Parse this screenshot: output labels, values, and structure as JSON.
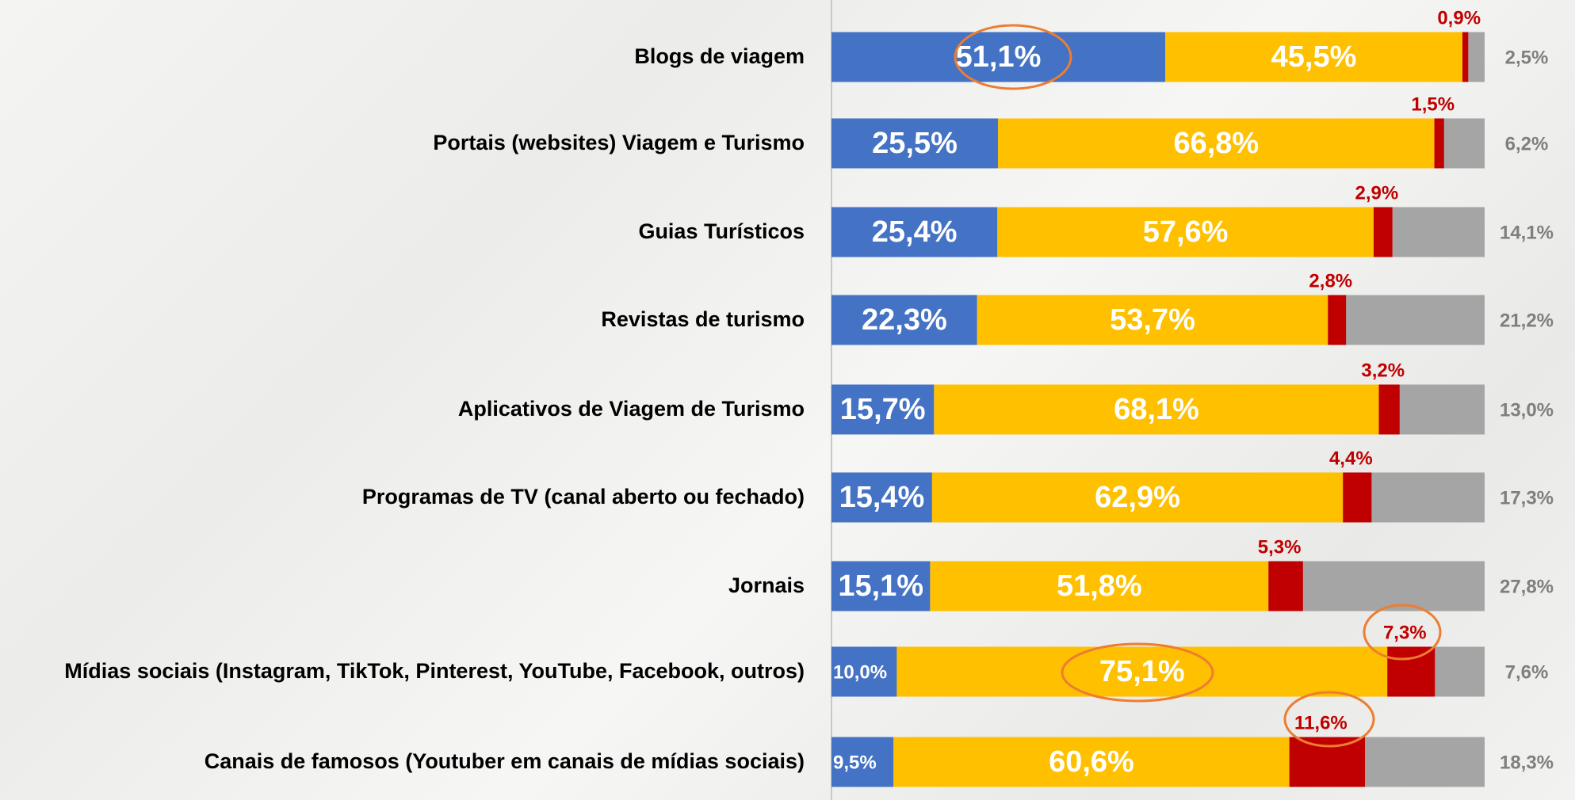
{
  "chart_data": {
    "type": "stacked-bar-horizontal",
    "categories": [
      "Blogs de viagem",
      "Portais (websites) Viagem e Turismo",
      "Guias Turísticos",
      "Revistas de turismo",
      "Aplicativos de Viagem de Turismo",
      "Programas de TV (canal aberto ou fechado)",
      "Jornais",
      "Mídias sociais (Instagram, TikTok, Pinterest, YouTube, Facebook, outros)",
      "Canais de famosos (Youtuber em canais de mídias sociais)"
    ],
    "xlim": [
      0,
      100
    ],
    "series": [
      {
        "color": "#4472c4",
        "values": [
          51.1,
          25.5,
          25.4,
          22.3,
          15.7,
          15.4,
          15.1,
          10.0,
          9.5
        ],
        "value_labels": [
          "51,1%",
          "25,5%",
          "25,4%",
          "22,3%",
          "15,7%",
          "15,4%",
          "15,1%",
          "10,0%",
          "9,5%"
        ]
      },
      {
        "color": "#ffc000",
        "values": [
          45.5,
          66.8,
          57.6,
          53.7,
          68.1,
          62.9,
          51.8,
          75.1,
          60.6
        ],
        "value_labels": [
          "45,5%",
          "66,8%",
          "57,6%",
          "53,7%",
          "68,1%",
          "62,9%",
          "51,8%",
          "75,1%",
          "60,6%"
        ]
      },
      {
        "color": "#c00000",
        "values": [
          0.9,
          1.5,
          2.9,
          2.8,
          3.2,
          4.4,
          5.3,
          7.3,
          11.6
        ],
        "value_labels": [
          "0,9%",
          "1,5%",
          "2,9%",
          "2,8%",
          "3,2%",
          "4,4%",
          "5,3%",
          "7,3%",
          "11,6%"
        ]
      },
      {
        "color": "#a5a5a5",
        "values": [
          2.5,
          6.2,
          14.1,
          21.2,
          13.0,
          17.3,
          27.8,
          7.6,
          18.3
        ],
        "value_labels": [
          "2,5%",
          "6,2%",
          "14,1%",
          "21,2%",
          "13,0%",
          "17,3%",
          "27,8%",
          "7,6%",
          "18,3%"
        ]
      }
    ]
  }
}
